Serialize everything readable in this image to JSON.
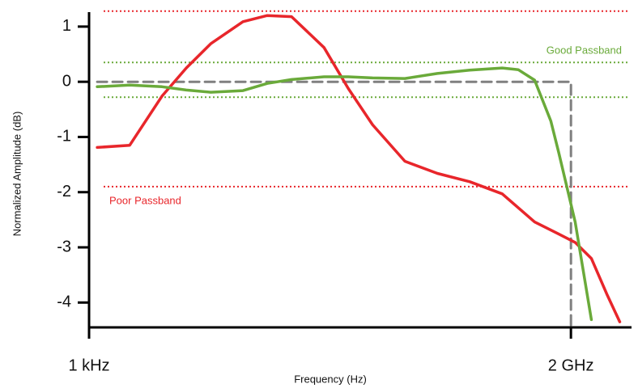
{
  "chart_data": {
    "type": "line",
    "xlabel": "Frequency (Hz)",
    "ylabel": "Normalized Amplitude (dB)",
    "xscale": "log",
    "xlim": [
      1000,
      12400000000
    ],
    "ylim": [
      -4.45,
      1.35
    ],
    "xticks": [
      {
        "value": 1000,
        "label": "1 kHz"
      },
      {
        "value": 2000000000,
        "label": "2 GHz"
      }
    ],
    "yticks": [
      1,
      0,
      -1,
      -2,
      -3,
      -4
    ],
    "grid": false,
    "reference_lines": [
      {
        "y": 1.28,
        "color": "#e8262b"
      },
      {
        "y": 0.35,
        "color": "#6aaa3a",
        "label": "Good Passband"
      },
      {
        "y": -0.28,
        "color": "#6aaa3a"
      },
      {
        "y": -1.9,
        "color": "#e8262b",
        "label": "Poor Passband"
      }
    ],
    "series": [
      {
        "color": "#808080",
        "dashed": true,
        "x": [
          1280,
          2000000000,
          2000000000
        ],
        "values": [
          0,
          0,
          -4.45
        ]
      },
      {
        "color": "#e8262b",
        "dashed": false,
        "x": [
          1280,
          3400,
          9000,
          18700,
          39000,
          103000,
          214000,
          445000,
          1180000,
          2450000,
          5100000,
          13500000,
          35900000,
          95000000,
          253000000,
          670000000,
          1390000000,
          2270000000,
          3700000000,
          6000000000,
          8700000000
        ],
        "values": [
          -1.19,
          -1.15,
          -0.26,
          0.25,
          0.69,
          1.09,
          1.2,
          1.18,
          0.62,
          -0.12,
          -0.78,
          -1.44,
          -1.66,
          -1.81,
          -2.03,
          -2.54,
          -2.76,
          -2.91,
          -3.2,
          -3.87,
          -4.35
        ]
      },
      {
        "color": "#6aaa3a",
        "dashed": false,
        "x": [
          1280,
          3400,
          9000,
          18700,
          39000,
          103000,
          214000,
          445000,
          1180000,
          2450000,
          5100000,
          13500000,
          35900000,
          95000000,
          253000000,
          410000000,
          670000000,
          1090000000,
          1390000000,
          2270000000,
          3700000000
        ],
        "values": [
          -0.09,
          -0.06,
          -0.09,
          -0.15,
          -0.19,
          -0.16,
          -0.03,
          0.04,
          0.09,
          0.09,
          0.07,
          0.06,
          0.15,
          0.21,
          0.25,
          0.22,
          0.03,
          -0.71,
          -1.29,
          -2.54,
          -4.31
        ]
      }
    ]
  }
}
